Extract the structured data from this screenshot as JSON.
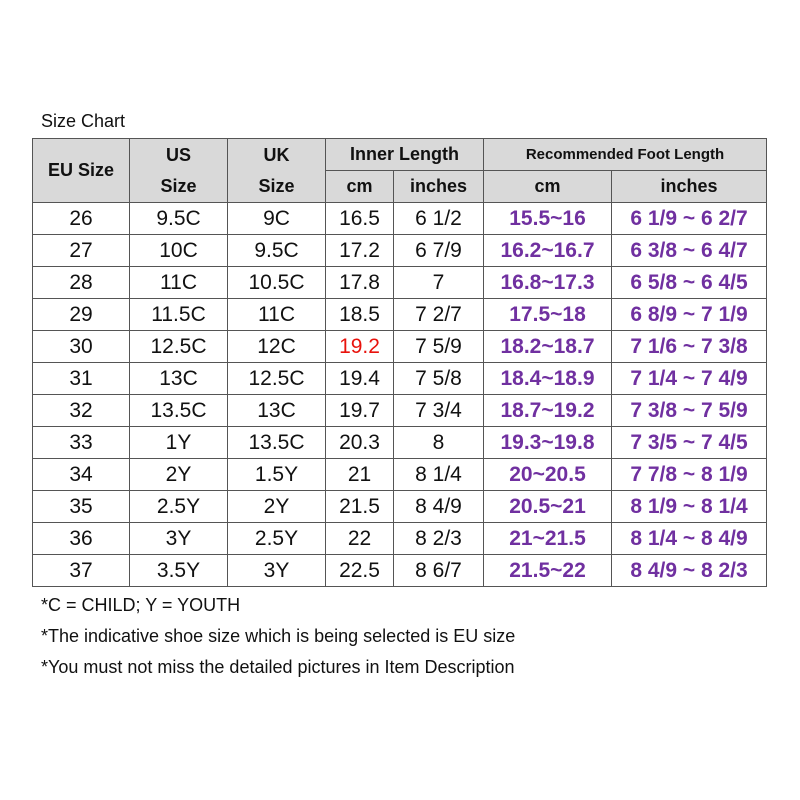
{
  "title": "Size Chart",
  "header": {
    "eu": "EU Size",
    "us": [
      "US",
      "Size"
    ],
    "uk": [
      "UK",
      "Size"
    ],
    "inner": "Inner Length",
    "inner_cm": "cm",
    "inner_in": "inches",
    "rec": "Recommended Foot Length",
    "rec_cm": "cm",
    "rec_in": "inches"
  },
  "rows": [
    [
      "26",
      "9.5C",
      "9C",
      "16.5",
      "6 1/2",
      "15.5~16",
      "6 1/9 ~ 6 2/7"
    ],
    [
      "27",
      "10C",
      "9.5C",
      "17.2",
      "6 7/9",
      "16.2~16.7",
      "6 3/8 ~ 6 4/7"
    ],
    [
      "28",
      "11C",
      "10.5C",
      "17.8",
      "7",
      "16.8~17.3",
      "6 5/8 ~ 6 4/5"
    ],
    [
      "29",
      "11.5C",
      "11C",
      "18.5",
      "7 2/7",
      "17.5~18",
      "6 8/9 ~ 7 1/9"
    ],
    [
      "30",
      "12.5C",
      "12C",
      {
        "text": "19.2",
        "color": "#e8120c"
      },
      "7 5/9",
      "18.2~18.7",
      "7 1/6 ~ 7 3/8"
    ],
    [
      "31",
      "13C",
      "12.5C",
      "19.4",
      "7 5/8",
      "18.4~18.9",
      "7 1/4 ~ 7 4/9"
    ],
    [
      "32",
      "13.5C",
      "13C",
      "19.7",
      "7 3/4",
      "18.7~19.2",
      "7 3/8 ~ 7 5/9"
    ],
    [
      "33",
      "1Y",
      "13.5C",
      "20.3",
      "8",
      "19.3~19.8",
      "7 3/5 ~ 7 4/5"
    ],
    [
      "34",
      "2Y",
      "1.5Y",
      "21",
      "8 1/4",
      "20~20.5",
      "7 7/8 ~ 8 1/9"
    ],
    [
      "35",
      "2.5Y",
      "2Y",
      "21.5",
      "8 4/9",
      "20.5~21",
      "8 1/9 ~ 8 1/4"
    ],
    [
      "36",
      "3Y",
      "2.5Y",
      "22",
      "8 2/3",
      "21~21.5",
      "8 1/4 ~ 8 4/9"
    ],
    [
      "37",
      "3.5Y",
      "3Y",
      "22.5",
      "8 6/7",
      "21.5~22",
      "8 4/9 ~ 8 2/3"
    ]
  ],
  "notes": [
    "*C = CHILD; Y = YOUTH",
    "*The indicative shoe size which is being selected is EU size",
    "*You must not miss the detailed pictures in Item Description"
  ]
}
